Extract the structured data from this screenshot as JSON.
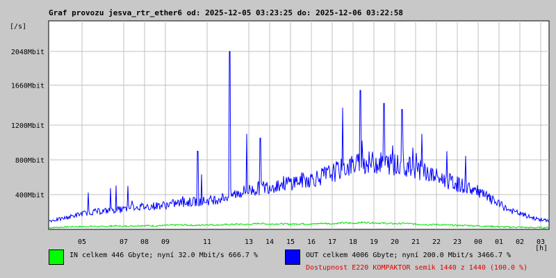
{
  "chart_data": {
    "type": "line",
    "title": "Graf provozu jesva_rtr_ether6 od: 2025-12-05 03:23:25 do: 2025-12-06 03:22:58",
    "ylabel": "[/s]",
    "xlabel": "[h]",
    "y_unit": "Mbit",
    "ylim": [
      0,
      2400
    ],
    "yticks": [
      {
        "value": 400,
        "label": "400Mbit"
      },
      {
        "value": 800,
        "label": "800Mbit"
      },
      {
        "value": 1200,
        "label": "1200Mbit"
      },
      {
        "value": 1660,
        "label": "1660Mbit"
      },
      {
        "value": 2048,
        "label": "2048Mbit"
      }
    ],
    "x_range_hours": [
      3.4,
      27.4
    ],
    "xticks": [
      {
        "hour": 5,
        "label": "05"
      },
      {
        "hour": 7,
        "label": "07"
      },
      {
        "hour": 8,
        "label": "08"
      },
      {
        "hour": 9,
        "label": "09"
      },
      {
        "hour": 11,
        "label": "11"
      },
      {
        "hour": 13,
        "label": "13"
      },
      {
        "hour": 14,
        "label": "14"
      },
      {
        "hour": 15,
        "label": "15"
      },
      {
        "hour": 16,
        "label": "16"
      },
      {
        "hour": 17,
        "label": "17"
      },
      {
        "hour": 18,
        "label": "18"
      },
      {
        "hour": 19,
        "label": "19"
      },
      {
        "hour": 20,
        "label": "20"
      },
      {
        "hour": 21,
        "label": "21"
      },
      {
        "hour": 22,
        "label": "22"
      },
      {
        "hour": 23,
        "label": "23"
      },
      {
        "hour": 24,
        "label": "00"
      },
      {
        "hour": 25,
        "label": "01"
      },
      {
        "hour": 26,
        "label": "02"
      },
      {
        "hour": 27,
        "label": "03"
      }
    ],
    "grid": true,
    "series": [
      {
        "name": "IN",
        "color": "#00e000",
        "x": [
          3.5,
          4,
          4.5,
          5,
          5.5,
          6,
          6.5,
          7,
          7.5,
          8,
          8.5,
          9,
          9.5,
          10,
          10.5,
          11,
          11.5,
          12,
          12.5,
          13,
          13.5,
          14,
          14.5,
          15,
          15.5,
          16,
          16.5,
          17,
          17.5,
          18,
          18.5,
          19,
          19.5,
          20,
          20.5,
          21,
          21.5,
          22,
          22.5,
          23,
          23.5,
          24,
          24.5,
          25,
          25.5,
          26,
          26.5,
          27,
          27.3
        ],
        "values": [
          20,
          25,
          30,
          30,
          35,
          30,
          40,
          35,
          40,
          45,
          40,
          45,
          50,
          50,
          45,
          55,
          50,
          55,
          60,
          55,
          70,
          60,
          65,
          60,
          65,
          60,
          70,
          65,
          75,
          70,
          80,
          75,
          70,
          65,
          70,
          60,
          55,
          55,
          50,
          45,
          45,
          40,
          35,
          30,
          25,
          25,
          20,
          20,
          20
        ]
      },
      {
        "name": "OUT",
        "color": "#0000ff",
        "x": [
          3.5,
          4,
          4.5,
          5,
          5.5,
          6,
          6.5,
          7,
          7.5,
          8,
          8.5,
          9,
          9.5,
          10,
          10.5,
          11,
          11.5,
          12,
          12.5,
          13,
          13.5,
          14,
          14.5,
          15,
          15.5,
          16,
          16.5,
          17,
          17.5,
          18,
          18.5,
          19,
          19.5,
          20,
          20.5,
          21,
          21.5,
          22,
          22.5,
          23,
          23.5,
          24,
          24.5,
          25,
          25.5,
          26,
          26.5,
          27,
          27.3
        ],
        "values": [
          100,
          120,
          150,
          180,
          200,
          210,
          220,
          230,
          260,
          260,
          270,
          280,
          300,
          310,
          320,
          330,
          350,
          380,
          420,
          450,
          470,
          500,
          520,
          540,
          560,
          580,
          610,
          650,
          700,
          740,
          760,
          770,
          760,
          750,
          720,
          700,
          650,
          600,
          560,
          520,
          480,
          430,
          360,
          290,
          220,
          180,
          140,
          110,
          100
        ]
      }
    ],
    "spikes": [
      {
        "hour": 12.08,
        "value": 2048
      },
      {
        "hour": 18.35,
        "value": 1600
      },
      {
        "hour": 17.5,
        "value": 1400
      },
      {
        "hour": 19.48,
        "value": 1450
      },
      {
        "hour": 20.35,
        "value": 1380
      },
      {
        "hour": 10.55,
        "value": 900
      },
      {
        "hour": 13.55,
        "value": 1050
      },
      {
        "hour": 12.9,
        "value": 1100
      },
      {
        "hour": 21.3,
        "value": 1100
      },
      {
        "hour": 7.2,
        "value": 500
      },
      {
        "hour": 22.5,
        "value": 900
      }
    ]
  },
  "legend": {
    "in_text": "IN celkem 446 Gbyte; nyní  32.0 Mbit/s 666.7 %",
    "out_text": "OUT celkem 4006 Gbyte; nyní 200.0 Mbit/s 3466.7 %",
    "availability_text": "Dostupnost E220 KOMPAKTOR semik 1440 z 1440 (100.0 %)",
    "availability_color": "#e00000"
  }
}
